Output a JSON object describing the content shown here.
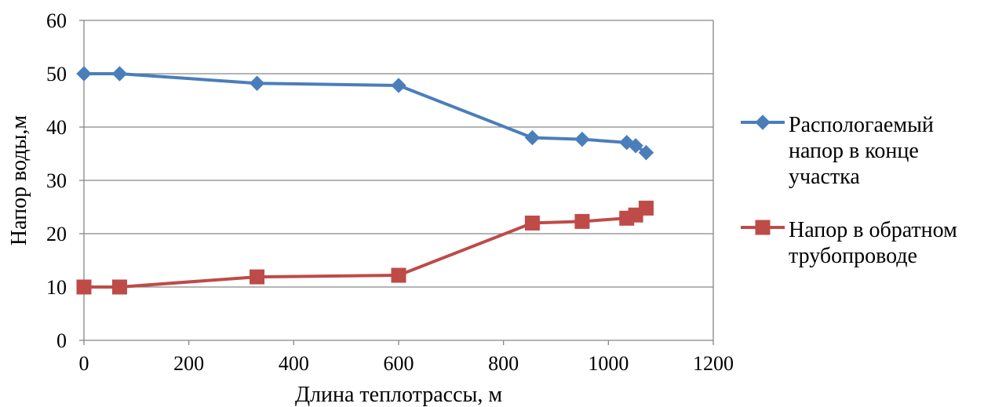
{
  "chart_data": {
    "type": "line",
    "xlabel": "Длина теплотрассы, м",
    "ylabel": "Напор воды,м",
    "xlim": [
      0,
      1200
    ],
    "ylim": [
      0,
      60
    ],
    "x_ticks": [
      "0",
      "200",
      "400",
      "600",
      "800",
      "1000",
      "1200"
    ],
    "y_ticks": [
      "0",
      "10",
      "20",
      "30",
      "40",
      "50",
      "60"
    ],
    "grid": "horizontal",
    "legend_position": "right",
    "series": [
      {
        "name_lines": [
          "Распологаемый",
          "напор в конце",
          "участка"
        ],
        "color": "#4A7EBB",
        "marker": "diamond",
        "points": [
          {
            "x": 0,
            "y": 50
          },
          {
            "x": 68,
            "y": 50
          },
          {
            "x": 330,
            "y": 48.2
          },
          {
            "x": 600,
            "y": 47.8
          },
          {
            "x": 855,
            "y": 38
          },
          {
            "x": 950,
            "y": 37.7
          },
          {
            "x": 1035,
            "y": 37.1
          },
          {
            "x": 1052,
            "y": 36.5
          },
          {
            "x": 1072,
            "y": 35.2
          }
        ]
      },
      {
        "name_lines": [
          "Напор в обратном",
          "трубопроводе"
        ],
        "color": "#BE4B48",
        "marker": "square",
        "points": [
          {
            "x": 0,
            "y": 10
          },
          {
            "x": 68,
            "y": 10
          },
          {
            "x": 330,
            "y": 11.9
          },
          {
            "x": 600,
            "y": 12.2
          },
          {
            "x": 855,
            "y": 22
          },
          {
            "x": 950,
            "y": 22.3
          },
          {
            "x": 1035,
            "y": 22.9
          },
          {
            "x": 1052,
            "y": 23.5
          },
          {
            "x": 1072,
            "y": 24.8
          }
        ]
      }
    ]
  }
}
